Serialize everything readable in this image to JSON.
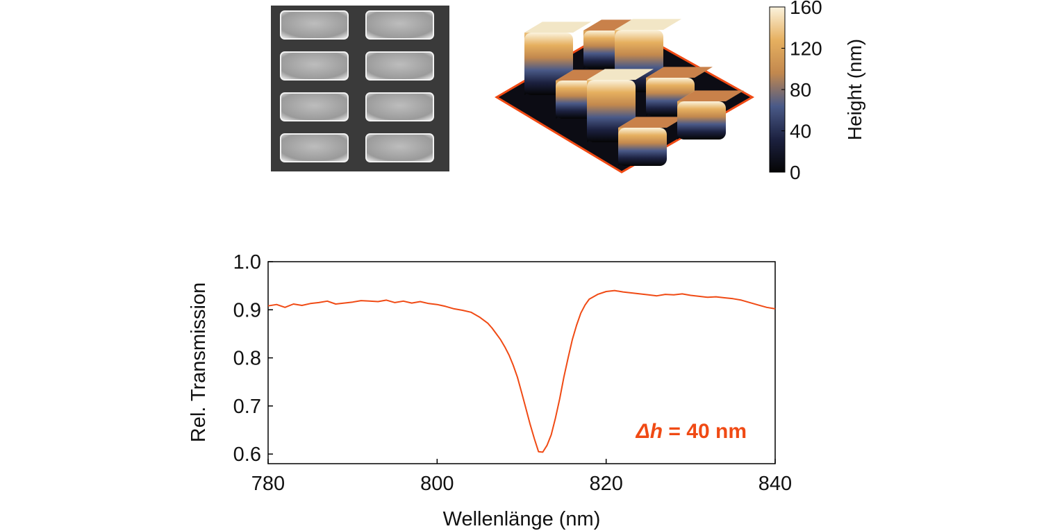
{
  "colorbar": {
    "label": "Height (nm)",
    "ticks": [
      "0",
      "40",
      "80",
      "120",
      "160"
    ],
    "range": [
      0,
      160
    ],
    "gradient": [
      "#050505",
      "#1c2140",
      "#4a5a88",
      "#c2884e",
      "#e6b060",
      "#fbf3dd"
    ]
  },
  "afm_image": {
    "frame_color": "#f04a14",
    "rows": [
      [
        160,
        80
      ],
      [
        80,
        160
      ],
      [
        160,
        80
      ],
      [
        80,
        80
      ]
    ]
  },
  "sem_image": {
    "rows": 4,
    "columns": 2
  },
  "annotation": {
    "symbol": "Δh",
    "rest": " = 40 nm",
    "color": "#f04a14"
  },
  "chart_data": {
    "type": "line",
    "xlabel": "Wellenlänge (nm)",
    "ylabel": "Rel. Transmission",
    "xlim": [
      780,
      840
    ],
    "ylim": [
      0.58,
      1.0
    ],
    "xticks": [
      780,
      800,
      820,
      840
    ],
    "yticks": [
      0.6,
      0.7,
      0.8,
      0.9,
      1.0
    ],
    "ytick_labels": [
      "0.6",
      "0.7",
      "0.8",
      "0.9",
      "1.0"
    ],
    "grid": false,
    "series": [
      {
        "color": "#f04a14",
        "x": [
          780,
          781,
          782,
          783,
          784,
          785,
          786,
          787,
          788,
          789,
          790,
          791,
          792,
          793,
          794,
          795,
          796,
          797,
          798,
          799,
          800,
          801,
          802,
          803,
          804,
          805,
          806,
          806.5,
          807,
          807.5,
          808,
          808.5,
          809,
          809.5,
          810,
          810.5,
          811,
          811.5,
          812,
          812.5,
          813,
          813.5,
          814,
          814.5,
          815,
          815.5,
          816,
          816.5,
          817,
          817.5,
          818,
          819,
          820,
          821,
          822,
          823,
          824,
          825,
          826,
          827,
          828,
          829,
          830,
          831,
          832,
          833,
          834,
          835,
          836,
          837,
          838,
          839,
          840
        ],
        "y": [
          0.908,
          0.911,
          0.905,
          0.912,
          0.909,
          0.913,
          0.915,
          0.918,
          0.912,
          0.914,
          0.916,
          0.919,
          0.918,
          0.917,
          0.92,
          0.915,
          0.918,
          0.914,
          0.917,
          0.913,
          0.911,
          0.907,
          0.902,
          0.899,
          0.895,
          0.885,
          0.872,
          0.862,
          0.85,
          0.838,
          0.823,
          0.806,
          0.785,
          0.76,
          0.728,
          0.695,
          0.662,
          0.632,
          0.605,
          0.604,
          0.618,
          0.64,
          0.675,
          0.715,
          0.76,
          0.8,
          0.838,
          0.868,
          0.893,
          0.91,
          0.922,
          0.932,
          0.938,
          0.94,
          0.937,
          0.935,
          0.933,
          0.931,
          0.929,
          0.932,
          0.931,
          0.933,
          0.93,
          0.928,
          0.926,
          0.927,
          0.925,
          0.923,
          0.92,
          0.915,
          0.91,
          0.905,
          0.902
        ]
      }
    ]
  }
}
